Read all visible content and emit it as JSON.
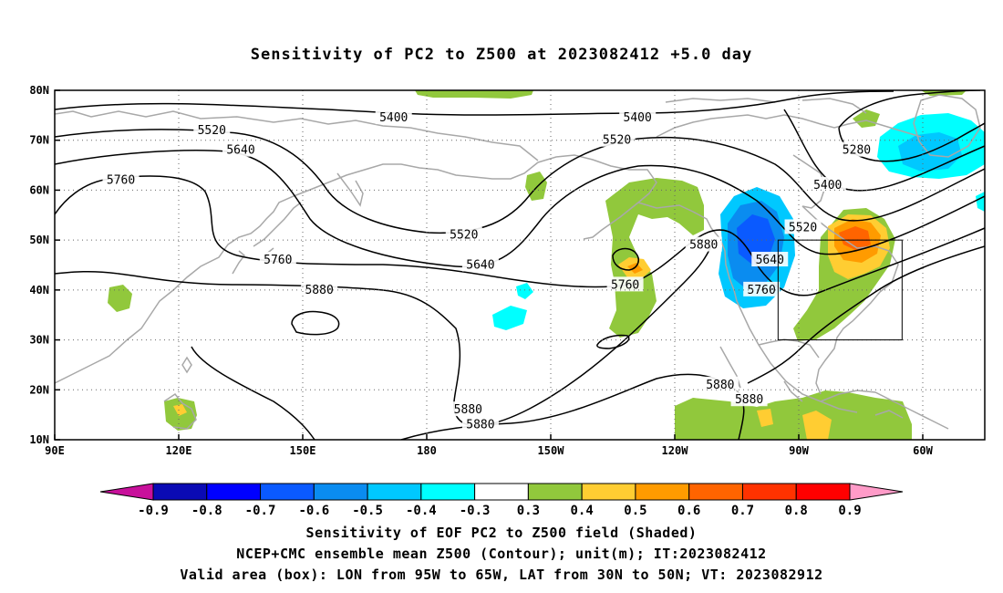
{
  "title": "Sensitivity of PC2 to Z500 at 2023082412 +5.0 day",
  "axes": {
    "x_ticks": [
      {
        "lon": 90,
        "label": "90E"
      },
      {
        "lon": 120,
        "label": "120E"
      },
      {
        "lon": 150,
        "label": "150E"
      },
      {
        "lon": 180,
        "label": "180"
      },
      {
        "lon": 210,
        "label": "150W"
      },
      {
        "lon": 240,
        "label": "120W"
      },
      {
        "lon": 270,
        "label": "90W"
      },
      {
        "lon": 300,
        "label": "60W"
      }
    ],
    "y_ticks": [
      {
        "lat": 10,
        "label": "10N"
      },
      {
        "lat": 20,
        "label": "20N"
      },
      {
        "lat": 30,
        "label": "30N"
      },
      {
        "lat": 40,
        "label": "40N"
      },
      {
        "lat": 50,
        "label": "50N"
      },
      {
        "lat": 60,
        "label": "60N"
      },
      {
        "lat": 70,
        "label": "70N"
      },
      {
        "lat": 80,
        "label": "80N"
      }
    ],
    "lon_range": [
      90,
      315
    ],
    "lat_range": [
      10,
      80
    ],
    "grid": "dotted"
  },
  "contour_labels": [
    {
      "text": "5400",
      "lon": 172,
      "lat": 74.5
    },
    {
      "text": "5400",
      "lon": 231,
      "lat": 74.5
    },
    {
      "text": "5280",
      "lon": 284,
      "lat": 68
    },
    {
      "text": "5400",
      "lon": 277,
      "lat": 61
    },
    {
      "text": "5520",
      "lon": 128,
      "lat": 72
    },
    {
      "text": "5520",
      "lon": 226,
      "lat": 70
    },
    {
      "text": "5520",
      "lon": 271,
      "lat": 52.5
    },
    {
      "text": "5520",
      "lon": 189,
      "lat": 51
    },
    {
      "text": "5640",
      "lon": 135,
      "lat": 68
    },
    {
      "text": "5640",
      "lon": 193,
      "lat": 45
    },
    {
      "text": "5640",
      "lon": 263,
      "lat": 46
    },
    {
      "text": "5760",
      "lon": 106,
      "lat": 62
    },
    {
      "text": "5760",
      "lon": 144,
      "lat": 46
    },
    {
      "text": "5760",
      "lon": 228,
      "lat": 41
    },
    {
      "text": "5760",
      "lon": 261,
      "lat": 40
    },
    {
      "text": "5880",
      "lon": 154,
      "lat": 40
    },
    {
      "text": "5880",
      "lon": 247,
      "lat": 49
    },
    {
      "text": "5880",
      "lon": 251,
      "lat": 21
    },
    {
      "text": "5880",
      "lon": 258,
      "lat": 18
    },
    {
      "text": "5880",
      "lon": 190,
      "lat": 16
    },
    {
      "text": "5880",
      "lon": 193,
      "lat": 13
    }
  ],
  "valid_box": {
    "lon_min": 265,
    "lon_max": 295,
    "lat_min": 30,
    "lat_max": 50
  },
  "colorbar": {
    "labels": [
      "-0.9",
      "-0.8",
      "-0.7",
      "-0.6",
      "-0.5",
      "-0.4",
      "-0.3",
      "0.3",
      "0.4",
      "0.5",
      "0.6",
      "0.7",
      "0.8",
      "0.9"
    ],
    "colors": [
      "#c8109b",
      "#0a0ab4",
      "#0000ff",
      "#0a5aff",
      "#0a8cf0",
      "#00c8ff",
      "#00ffff",
      "#ffffff",
      "#91c83c",
      "#ffcd32",
      "#ff9b00",
      "#ff6400",
      "#ff3200",
      "#ff0000",
      "#ff9bc8"
    ]
  },
  "captions": [
    "Sensitivity of EOF PC2 to Z500 field (Shaded)",
    "NCEP+CMC ensemble mean Z500 (Contour); unit(m); IT:2023082412",
    "Valid area (box): LON from 95W to 65W, LAT from 30N to 50N; VT: 2023082912"
  ]
}
